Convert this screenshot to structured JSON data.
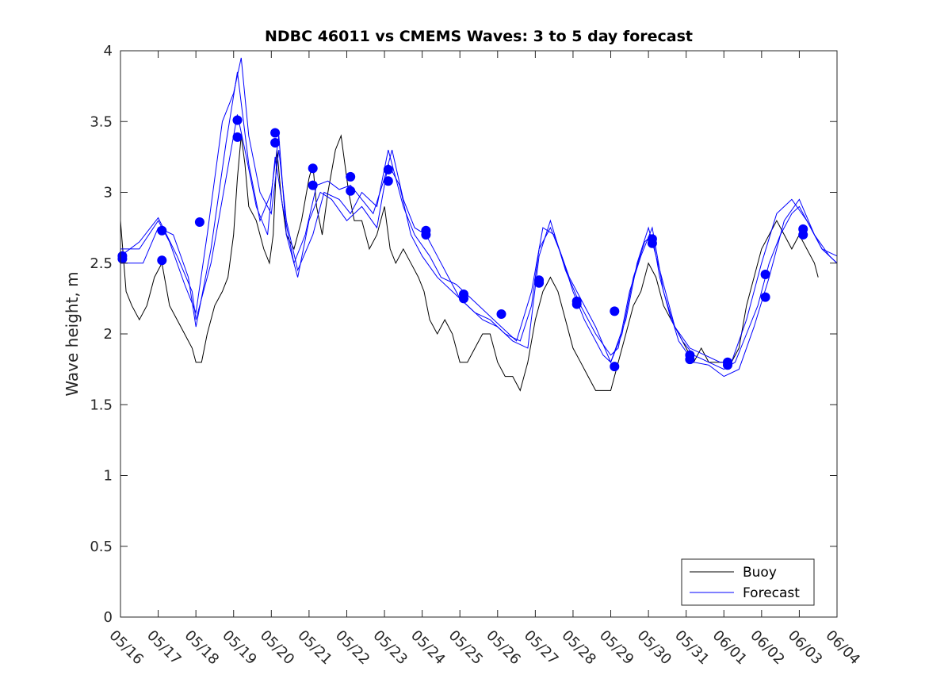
{
  "chart_data": {
    "type": "line",
    "title": "NDBC 46011 vs CMEMS Waves: 3 to 5 day forecast",
    "xlabel": "",
    "ylabel": "Wave height, m",
    "xlim": [
      "05/16",
      "06/04"
    ],
    "ylim": [
      0,
      4
    ],
    "grid": false,
    "legend_position": "bottom-right",
    "x_ticks": [
      "05/16",
      "05/17",
      "05/18",
      "05/19",
      "05/20",
      "05/21",
      "05/22",
      "05/23",
      "05/24",
      "05/25",
      "05/26",
      "05/27",
      "05/28",
      "05/29",
      "05/30",
      "05/31",
      "06/01",
      "06/02",
      "06/03",
      "06/04"
    ],
    "y_ticks": [
      "0",
      "0.5",
      "1",
      "1.5",
      "2",
      "2.5",
      "3",
      "3.5",
      "4"
    ],
    "colors": {
      "buoy": "#000000",
      "forecast": "#0000ff",
      "axis": "#262626"
    },
    "series": [
      {
        "name": "Buoy",
        "style": "line",
        "points": [
          [
            0.0,
            2.8
          ],
          [
            0.15,
            2.3
          ],
          [
            0.3,
            2.2
          ],
          [
            0.5,
            2.1
          ],
          [
            0.7,
            2.2
          ],
          [
            0.9,
            2.4
          ],
          [
            1.1,
            2.5
          ],
          [
            1.3,
            2.2
          ],
          [
            1.5,
            2.1
          ],
          [
            1.7,
            2.0
          ],
          [
            1.9,
            1.9
          ],
          [
            2.0,
            1.8
          ],
          [
            2.15,
            1.8
          ],
          [
            2.3,
            2.0
          ],
          [
            2.5,
            2.2
          ],
          [
            2.7,
            2.3
          ],
          [
            2.85,
            2.4
          ],
          [
            3.0,
            2.7
          ],
          [
            3.1,
            3.1
          ],
          [
            3.2,
            3.4
          ],
          [
            3.3,
            3.2
          ],
          [
            3.4,
            2.9
          ],
          [
            3.6,
            2.8
          ],
          [
            3.8,
            2.6
          ],
          [
            3.95,
            2.5
          ],
          [
            4.05,
            2.7
          ],
          [
            4.15,
            3.3
          ],
          [
            4.25,
            3.0
          ],
          [
            4.4,
            2.7
          ],
          [
            4.6,
            2.6
          ],
          [
            4.8,
            2.8
          ],
          [
            5.0,
            3.1
          ],
          [
            5.1,
            3.2
          ],
          [
            5.2,
            2.9
          ],
          [
            5.35,
            2.7
          ],
          [
            5.5,
            3.0
          ],
          [
            5.7,
            3.3
          ],
          [
            5.85,
            3.4
          ],
          [
            5.95,
            3.2
          ],
          [
            6.05,
            3.0
          ],
          [
            6.2,
            2.8
          ],
          [
            6.4,
            2.8
          ],
          [
            6.6,
            2.6
          ],
          [
            6.8,
            2.7
          ],
          [
            7.0,
            2.9
          ],
          [
            7.15,
            2.6
          ],
          [
            7.3,
            2.5
          ],
          [
            7.5,
            2.6
          ],
          [
            7.7,
            2.5
          ],
          [
            7.9,
            2.4
          ],
          [
            8.05,
            2.3
          ],
          [
            8.2,
            2.1
          ],
          [
            8.4,
            2.0
          ],
          [
            8.6,
            2.1
          ],
          [
            8.8,
            2.0
          ],
          [
            9.0,
            1.8
          ],
          [
            9.2,
            1.8
          ],
          [
            9.4,
            1.9
          ],
          [
            9.6,
            2.0
          ],
          [
            9.8,
            2.0
          ],
          [
            10.0,
            1.8
          ],
          [
            10.2,
            1.7
          ],
          [
            10.4,
            1.7
          ],
          [
            10.6,
            1.6
          ],
          [
            10.8,
            1.8
          ],
          [
            11.0,
            2.1
          ],
          [
            11.2,
            2.3
          ],
          [
            11.4,
            2.4
          ],
          [
            11.6,
            2.3
          ],
          [
            11.8,
            2.1
          ],
          [
            12.0,
            1.9
          ],
          [
            12.2,
            1.8
          ],
          [
            12.4,
            1.7
          ],
          [
            12.6,
            1.6
          ],
          [
            12.8,
            1.6
          ],
          [
            13.0,
            1.6
          ],
          [
            13.2,
            1.8
          ],
          [
            13.4,
            2.0
          ],
          [
            13.6,
            2.2
          ],
          [
            13.8,
            2.3
          ],
          [
            14.0,
            2.5
          ],
          [
            14.2,
            2.4
          ],
          [
            14.4,
            2.2
          ],
          [
            14.6,
            2.1
          ],
          [
            14.8,
            2.0
          ],
          [
            15.0,
            1.9
          ],
          [
            15.2,
            1.8
          ],
          [
            15.4,
            1.9
          ],
          [
            15.6,
            1.8
          ],
          [
            15.8,
            1.8
          ],
          [
            16.0,
            1.8
          ],
          [
            16.2,
            1.8
          ],
          [
            16.4,
            1.9
          ],
          [
            16.6,
            2.2
          ],
          [
            16.8,
            2.4
          ],
          [
            17.0,
            2.6
          ],
          [
            17.2,
            2.7
          ],
          [
            17.4,
            2.8
          ],
          [
            17.6,
            2.7
          ],
          [
            17.8,
            2.6
          ],
          [
            18.0,
            2.7
          ],
          [
            18.2,
            2.6
          ],
          [
            18.4,
            2.5
          ],
          [
            18.5,
            2.4
          ]
        ]
      },
      {
        "name": "Forecast",
        "style": "line",
        "points": [
          [
            0.0,
            2.55
          ],
          [
            0.5,
            2.65
          ],
          [
            1.0,
            2.82
          ],
          [
            1.5,
            2.55
          ],
          [
            1.9,
            2.3
          ],
          [
            2.0,
            2.1
          ],
          [
            2.4,
            2.5
          ],
          [
            2.8,
            3.1
          ],
          [
            3.1,
            3.55
          ],
          [
            3.3,
            3.3
          ],
          [
            3.6,
            2.9
          ],
          [
            3.9,
            2.7
          ],
          [
            4.1,
            3.25
          ],
          [
            4.3,
            2.9
          ],
          [
            4.6,
            2.5
          ],
          [
            4.9,
            2.7
          ],
          [
            5.2,
            3.05
          ],
          [
            5.5,
            3.08
          ],
          [
            5.8,
            3.02
          ],
          [
            6.1,
            3.05
          ],
          [
            6.4,
            2.95
          ],
          [
            6.7,
            2.85
          ],
          [
            7.0,
            3.1
          ],
          [
            7.2,
            3.3
          ],
          [
            7.5,
            2.95
          ],
          [
            7.8,
            2.75
          ],
          [
            8.1,
            2.7
          ],
          [
            8.4,
            2.55
          ],
          [
            8.7,
            2.4
          ],
          [
            9.0,
            2.25
          ],
          [
            9.4,
            2.15
          ],
          [
            9.8,
            2.1
          ],
          [
            10.2,
            2.0
          ],
          [
            10.6,
            1.95
          ],
          [
            10.9,
            2.2
          ],
          [
            11.1,
            2.6
          ],
          [
            11.4,
            2.75
          ],
          [
            11.7,
            2.55
          ],
          [
            12.0,
            2.3
          ],
          [
            12.3,
            2.1
          ],
          [
            12.6,
            1.95
          ],
          [
            12.8,
            1.85
          ],
          [
            13.0,
            1.8
          ],
          [
            13.3,
            2.0
          ],
          [
            13.6,
            2.4
          ],
          [
            13.9,
            2.65
          ],
          [
            14.1,
            2.7
          ],
          [
            14.3,
            2.4
          ],
          [
            14.6,
            2.1
          ],
          [
            14.9,
            1.95
          ],
          [
            15.2,
            1.85
          ],
          [
            15.6,
            1.8
          ],
          [
            16.0,
            1.75
          ],
          [
            16.3,
            1.8
          ],
          [
            16.6,
            2.0
          ],
          [
            16.9,
            2.2
          ],
          [
            17.2,
            2.5
          ],
          [
            17.5,
            2.7
          ],
          [
            17.8,
            2.85
          ],
          [
            18.0,
            2.9
          ],
          [
            18.3,
            2.75
          ],
          [
            18.6,
            2.6
          ],
          [
            19.0,
            2.5
          ]
        ]
      },
      {
        "name": "",
        "style": "line",
        "points": [
          [
            0.0,
            2.5
          ],
          [
            0.6,
            2.5
          ],
          [
            1.0,
            2.75
          ],
          [
            1.4,
            2.7
          ],
          [
            1.8,
            2.4
          ],
          [
            2.0,
            2.05
          ],
          [
            2.4,
            2.6
          ],
          [
            2.8,
            3.35
          ],
          [
            3.1,
            3.85
          ],
          [
            3.4,
            3.2
          ],
          [
            3.7,
            2.8
          ],
          [
            4.0,
            3.0
          ],
          [
            4.2,
            3.4
          ],
          [
            4.4,
            2.7
          ],
          [
            4.7,
            2.4
          ],
          [
            5.0,
            2.8
          ],
          [
            5.3,
            3.0
          ],
          [
            5.6,
            2.95
          ],
          [
            6.0,
            2.8
          ],
          [
            6.4,
            2.9
          ],
          [
            6.8,
            2.75
          ],
          [
            7.1,
            3.2
          ],
          [
            7.4,
            3.05
          ],
          [
            7.7,
            2.7
          ],
          [
            8.0,
            2.55
          ],
          [
            8.4,
            2.4
          ],
          [
            8.8,
            2.3
          ],
          [
            9.2,
            2.2
          ],
          [
            9.6,
            2.1
          ],
          [
            10.0,
            2.05
          ],
          [
            10.4,
            1.95
          ],
          [
            10.8,
            1.9
          ],
          [
            11.1,
            2.55
          ],
          [
            11.4,
            2.8
          ],
          [
            11.8,
            2.45
          ],
          [
            12.2,
            2.2
          ],
          [
            12.6,
            2.0
          ],
          [
            13.0,
            1.85
          ],
          [
            13.2,
            1.9
          ],
          [
            13.5,
            2.3
          ],
          [
            13.8,
            2.55
          ],
          [
            14.1,
            2.75
          ],
          [
            14.4,
            2.3
          ],
          [
            14.8,
            1.95
          ],
          [
            15.2,
            1.8
          ],
          [
            15.6,
            1.78
          ],
          [
            16.0,
            1.7
          ],
          [
            16.4,
            1.75
          ],
          [
            16.8,
            2.05
          ],
          [
            17.2,
            2.4
          ],
          [
            17.6,
            2.8
          ],
          [
            18.0,
            2.95
          ],
          [
            18.4,
            2.7
          ],
          [
            18.8,
            2.55
          ],
          [
            19.0,
            2.5
          ]
        ]
      },
      {
        "name": "",
        "style": "line",
        "points": [
          [
            0.0,
            2.6
          ],
          [
            0.5,
            2.6
          ],
          [
            1.0,
            2.8
          ],
          [
            1.3,
            2.65
          ],
          [
            1.7,
            2.35
          ],
          [
            2.0,
            2.15
          ],
          [
            2.3,
            2.7
          ],
          [
            2.7,
            3.5
          ],
          [
            3.0,
            3.7
          ],
          [
            3.2,
            3.95
          ],
          [
            3.4,
            3.4
          ],
          [
            3.7,
            3.0
          ],
          [
            4.0,
            2.85
          ],
          [
            4.2,
            3.3
          ],
          [
            4.4,
            2.8
          ],
          [
            4.7,
            2.45
          ],
          [
            5.1,
            2.7
          ],
          [
            5.4,
            3.0
          ],
          [
            5.8,
            2.95
          ],
          [
            6.1,
            2.85
          ],
          [
            6.4,
            3.0
          ],
          [
            6.8,
            2.9
          ],
          [
            7.1,
            3.3
          ],
          [
            7.5,
            2.9
          ],
          [
            7.8,
            2.7
          ],
          [
            8.2,
            2.55
          ],
          [
            8.5,
            2.4
          ],
          [
            8.9,
            2.35
          ],
          [
            9.3,
            2.25
          ],
          [
            9.7,
            2.15
          ],
          [
            10.1,
            2.05
          ],
          [
            10.5,
            1.95
          ],
          [
            10.9,
            2.3
          ],
          [
            11.2,
            2.75
          ],
          [
            11.5,
            2.7
          ],
          [
            11.9,
            2.4
          ],
          [
            12.2,
            2.25
          ],
          [
            12.6,
            2.05
          ],
          [
            13.0,
            1.8
          ],
          [
            13.4,
            2.1
          ],
          [
            13.7,
            2.5
          ],
          [
            14.0,
            2.75
          ],
          [
            14.3,
            2.45
          ],
          [
            14.7,
            2.05
          ],
          [
            15.1,
            1.9
          ],
          [
            15.5,
            1.85
          ],
          [
            15.9,
            1.8
          ],
          [
            16.2,
            1.8
          ],
          [
            16.6,
            2.1
          ],
          [
            17.0,
            2.5
          ],
          [
            17.4,
            2.85
          ],
          [
            17.8,
            2.95
          ],
          [
            18.2,
            2.8
          ],
          [
            18.6,
            2.6
          ],
          [
            19.0,
            2.55
          ]
        ]
      },
      {
        "name": "",
        "style": "markers",
        "points": [
          [
            0.05,
            2.55
          ],
          [
            0.05,
            2.53
          ],
          [
            1.1,
            2.73
          ],
          [
            1.1,
            2.52
          ],
          [
            2.1,
            2.79
          ],
          [
            3.1,
            3.51
          ],
          [
            3.1,
            3.39
          ],
          [
            4.1,
            3.42
          ],
          [
            4.1,
            3.35
          ],
          [
            5.1,
            3.17
          ],
          [
            5.1,
            3.05
          ],
          [
            6.1,
            3.11
          ],
          [
            6.1,
            3.01
          ],
          [
            7.1,
            3.16
          ],
          [
            7.1,
            3.08
          ],
          [
            8.1,
            2.73
          ],
          [
            8.1,
            2.7
          ],
          [
            9.1,
            2.28
          ],
          [
            9.1,
            2.25
          ],
          [
            10.1,
            2.14
          ],
          [
            11.1,
            2.38
          ],
          [
            11.1,
            2.36
          ],
          [
            12.1,
            2.23
          ],
          [
            12.1,
            2.21
          ],
          [
            13.1,
            2.16
          ],
          [
            13.1,
            1.77
          ],
          [
            14.1,
            2.67
          ],
          [
            14.1,
            2.64
          ],
          [
            15.1,
            1.85
          ],
          [
            15.1,
            1.82
          ],
          [
            16.1,
            1.8
          ],
          [
            16.1,
            1.78
          ],
          [
            17.1,
            2.42
          ],
          [
            17.1,
            2.26
          ],
          [
            18.1,
            2.74
          ],
          [
            18.1,
            2.7
          ]
        ]
      }
    ]
  }
}
